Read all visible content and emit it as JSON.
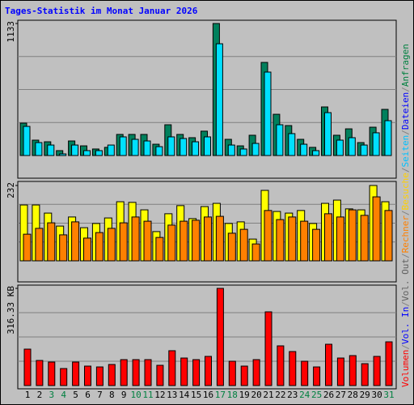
{
  "title": "Tages-Statistik im Monat Januar 2026",
  "separator": "/",
  "categories": [
    "1",
    "2",
    "3",
    "4",
    "5",
    "6",
    "7",
    "8",
    "9",
    "10",
    "11",
    "12",
    "13",
    "14",
    "15",
    "16",
    "17",
    "18",
    "19",
    "20",
    "21",
    "22",
    "23",
    "24",
    "25",
    "26",
    "27",
    "28",
    "29",
    "30",
    "31"
  ],
  "category_colors": [
    "#000000",
    "#000000",
    "#008040",
    "#008040",
    "#000000",
    "#000000",
    "#000000",
    "#000000",
    "#000000",
    "#008040",
    "#008040",
    "#000000",
    "#000000",
    "#000000",
    "#000000",
    "#000000",
    "#008040",
    "#008040",
    "#000000",
    "#000000",
    "#000000",
    "#000000",
    "#000000",
    "#008040",
    "#008040",
    "#000000",
    "#000000",
    "#000000",
    "#000000",
    "#000000",
    "#008040"
  ],
  "chart_data": [
    {
      "type": "bar",
      "ylim": [
        0,
        1133
      ],
      "yticks": [
        1133
      ],
      "legend": [
        {
          "label": "Seiten",
          "color": "#00c0ff"
        },
        {
          "label": "Dateien",
          "color": "#0000ff"
        },
        {
          "label": "Anfragen",
          "color": "#008040"
        }
      ],
      "series": [
        {
          "color": "#00805c",
          "values": [
            278,
            132,
            118,
            42,
            125,
            83,
            56,
            70,
            181,
            181,
            181,
            97,
            264,
            181,
            153,
            209,
            1133,
            139,
            83,
            174,
            799,
            354,
            257,
            139,
            70,
            417,
            174,
            229,
            111,
            243,
            396
          ]
        },
        {
          "color": "#00e0ff",
          "values": [
            250,
            111,
            90,
            14,
            90,
            42,
            42,
            90,
            160,
            139,
            125,
            76,
            160,
            146,
            118,
            160,
            959,
            90,
            56,
            104,
            716,
            264,
            188,
            97,
            42,
            368,
            132,
            153,
            90,
            195,
            299
          ]
        }
      ]
    },
    {
      "type": "bar",
      "ylim": [
        0,
        232
      ],
      "yticks": [
        232
      ],
      "legend": [
        {
          "label": "Rechner",
          "color": "#ff8000"
        },
        {
          "label": "Besuche",
          "color": "#ffd000"
        }
      ],
      "series": [
        {
          "color": "#ffff00",
          "values": [
            172,
            172,
            147,
            107,
            135,
            102,
            115,
            132,
            182,
            180,
            157,
            90,
            145,
            170,
            130,
            167,
            177,
            115,
            120,
            67,
            217,
            152,
            147,
            155,
            115,
            177,
            187,
            160,
            157,
            232,
            182
          ]
        },
        {
          "color": "#ff8000",
          "values": [
            82,
            100,
            117,
            80,
            120,
            70,
            87,
            100,
            117,
            135,
            122,
            72,
            110,
            122,
            125,
            135,
            137,
            85,
            97,
            52,
            155,
            127,
            135,
            122,
            97,
            145,
            135,
            157,
            140,
            197,
            155
          ]
        }
      ]
    },
    {
      "type": "bar",
      "ylim": [
        0,
        316.33
      ],
      "yticks": [
        {
          "value": 316.33,
          "label": "316.33 KB"
        }
      ],
      "legend": [
        {
          "label": "Volumen",
          "color": "#ff0000"
        },
        {
          "label": "Vol. In",
          "color": "#0000ff"
        },
        {
          "label": "Vol. Out",
          "color": "#606060"
        }
      ],
      "series": [
        {
          "color": "#ff0000",
          "values": [
            118.6,
            81.7,
            76.5,
            55.4,
            76.5,
            63.3,
            60.6,
            68.6,
            84.4,
            84.4,
            84.4,
            65.9,
            113.4,
            89.6,
            84.4,
            94.9,
            316.33,
            79.1,
            63.3,
            84.4,
            239.9,
            129.2,
            110.7,
            79.1,
            60.6,
            134.4,
            89.6,
            97.5,
            71.2,
            94.9,
            142.3
          ]
        }
      ]
    }
  ]
}
